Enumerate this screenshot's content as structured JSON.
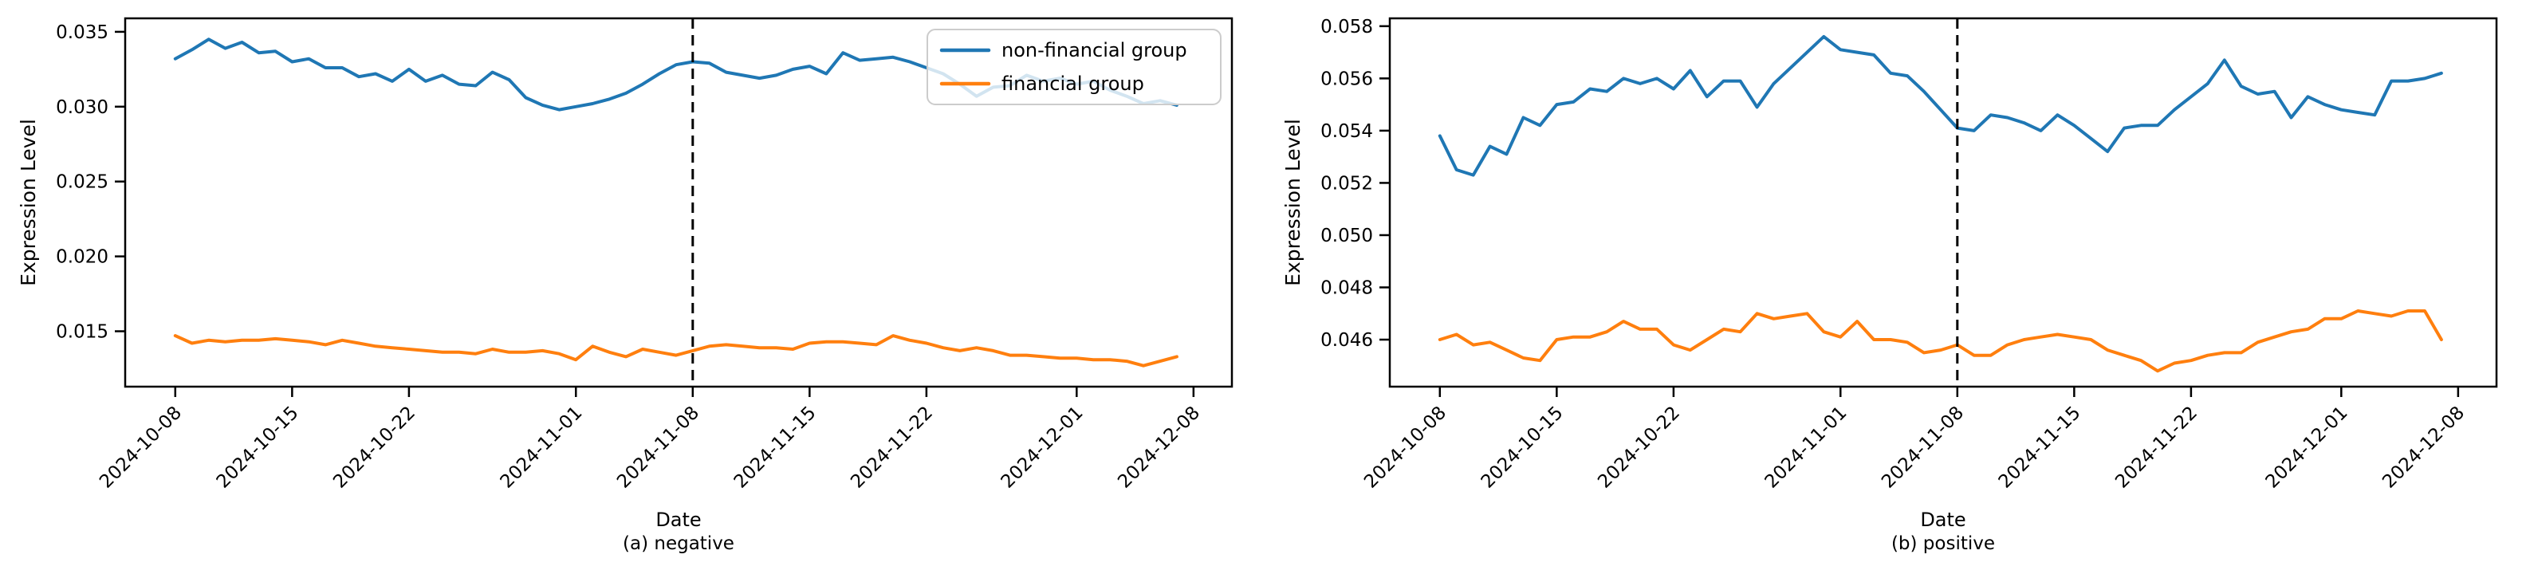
{
  "figure": {
    "background": "#ffffff",
    "ylabel": "Expression Level",
    "xlabel": "Date",
    "legend": {
      "position": "upper right",
      "frame_color": "#cccccc",
      "frame_fill": "#ffffff",
      "frame_opacity": 0.8,
      "entries": [
        {
          "label": "non-financial group",
          "color": "#1f77b4"
        },
        {
          "label": "financial group",
          "color": "#ff7f0e"
        }
      ]
    },
    "colors": {
      "non_financial": "#1f77b4",
      "financial": "#ff7f0e",
      "vline": "#000000",
      "spine": "#000000"
    }
  },
  "chart_data": [
    {
      "type": "line",
      "panel": "a",
      "title": "(a) negative",
      "xlabel": "Date",
      "ylabel": "Expression Level",
      "x_start_date": "2024-10-08",
      "x_unit": "days",
      "grid": false,
      "legend_visible": true,
      "xlim_days": [
        -3.0,
        63.3
      ],
      "ylim": [
        0.0113,
        0.0359
      ],
      "yticks": [
        0.015,
        0.02,
        0.025,
        0.03,
        0.035
      ],
      "xticks": [
        {
          "label": "2024-10-08",
          "day": 0
        },
        {
          "label": "2024-10-15",
          "day": 7
        },
        {
          "label": "2024-10-22",
          "day": 14
        },
        {
          "label": "2024-11-01",
          "day": 24
        },
        {
          "label": "2024-11-08",
          "day": 31
        },
        {
          "label": "2024-11-15",
          "day": 38
        },
        {
          "label": "2024-11-22",
          "day": 45
        },
        {
          "label": "2024-12-01",
          "day": 54
        },
        {
          "label": "2024-12-08",
          "day": 61
        }
      ],
      "vline": {
        "day": 31,
        "date": "2024-11-08",
        "style": "dashed",
        "color": "#000000"
      },
      "series": [
        {
          "name": "non-financial group",
          "color": "#1f77b4",
          "values": [
            0.0332,
            0.0338,
            0.0345,
            0.0339,
            0.0343,
            0.0336,
            0.0337,
            0.033,
            0.0332,
            0.0326,
            0.0326,
            0.032,
            0.0322,
            0.0317,
            0.0325,
            0.0317,
            0.0321,
            0.0315,
            0.0314,
            0.0323,
            0.0318,
            0.0306,
            0.0301,
            0.0298,
            0.03,
            0.0302,
            0.0305,
            0.0309,
            0.0315,
            0.0322,
            0.0328,
            0.033,
            0.0329,
            0.0323,
            0.0321,
            0.0319,
            0.0321,
            0.0325,
            0.0327,
            0.0322,
            0.0336,
            0.0331,
            0.0332,
            0.0333,
            0.033,
            0.0326,
            0.0322,
            0.0315,
            0.0307,
            0.0313,
            0.0314,
            0.0321,
            0.0317,
            0.0319,
            0.0315,
            0.0317,
            0.0311,
            0.0307,
            0.0302,
            0.0304,
            0.0301
          ]
        },
        {
          "name": "financial group",
          "color": "#ff7f0e",
          "values": [
            0.0147,
            0.0142,
            0.0144,
            0.0143,
            0.0144,
            0.0144,
            0.0145,
            0.0144,
            0.0143,
            0.0141,
            0.0144,
            0.0142,
            0.014,
            0.0139,
            0.0138,
            0.0137,
            0.0136,
            0.0136,
            0.0135,
            0.0138,
            0.0136,
            0.0136,
            0.0137,
            0.0135,
            0.0131,
            0.014,
            0.0136,
            0.0133,
            0.0138,
            0.0136,
            0.0134,
            0.0137,
            0.014,
            0.0141,
            0.014,
            0.0139,
            0.0139,
            0.0138,
            0.0142,
            0.0143,
            0.0143,
            0.0142,
            0.0141,
            0.0147,
            0.0144,
            0.0142,
            0.0139,
            0.0137,
            0.0139,
            0.0137,
            0.0134,
            0.0134,
            0.0133,
            0.0132,
            0.0132,
            0.0131,
            0.0131,
            0.013,
            0.0127,
            0.013,
            0.0133
          ]
        }
      ]
    },
    {
      "type": "line",
      "panel": "b",
      "title": "(b) positive",
      "xlabel": "Date",
      "ylabel": "Expression Level",
      "x_start_date": "2024-10-08",
      "x_unit": "days",
      "grid": false,
      "legend_visible": false,
      "xlim_days": [
        -3.0,
        63.3
      ],
      "ylim": [
        0.0442,
        0.0583
      ],
      "yticks": [
        0.046,
        0.048,
        0.05,
        0.052,
        0.054,
        0.056,
        0.058
      ],
      "xticks": [
        {
          "label": "2024-10-08",
          "day": 0
        },
        {
          "label": "2024-10-15",
          "day": 7
        },
        {
          "label": "2024-10-22",
          "day": 14
        },
        {
          "label": "2024-11-01",
          "day": 24
        },
        {
          "label": "2024-11-08",
          "day": 31
        },
        {
          "label": "2024-11-15",
          "day": 38
        },
        {
          "label": "2024-11-22",
          "day": 45
        },
        {
          "label": "2024-12-01",
          "day": 54
        },
        {
          "label": "2024-12-08",
          "day": 61
        }
      ],
      "vline": {
        "day": 31,
        "date": "2024-11-08",
        "style": "dashed",
        "color": "#000000"
      },
      "series": [
        {
          "name": "non-financial group",
          "color": "#1f77b4",
          "values": [
            0.0538,
            0.0525,
            0.0523,
            0.0534,
            0.0531,
            0.0545,
            0.0542,
            0.055,
            0.0551,
            0.0556,
            0.0555,
            0.056,
            0.0558,
            0.056,
            0.0556,
            0.0563,
            0.0553,
            0.0559,
            0.0559,
            0.0549,
            0.0558,
            0.0564,
            0.057,
            0.0576,
            0.0571,
            0.057,
            0.0569,
            0.0562,
            0.0561,
            0.0555,
            0.0548,
            0.0541,
            0.054,
            0.0546,
            0.0545,
            0.0543,
            0.054,
            0.0546,
            0.0542,
            0.0537,
            0.0532,
            0.0541,
            0.0542,
            0.0542,
            0.0548,
            0.0553,
            0.0558,
            0.0567,
            0.0557,
            0.0554,
            0.0555,
            0.0545,
            0.0553,
            0.055,
            0.0548,
            0.0547,
            0.0546,
            0.0559,
            0.0559,
            0.056,
            0.0562
          ]
        },
        {
          "name": "financial group",
          "color": "#ff7f0e",
          "values": [
            0.046,
            0.0462,
            0.0458,
            0.0459,
            0.0456,
            0.0453,
            0.0452,
            0.046,
            0.0461,
            0.0461,
            0.0463,
            0.0467,
            0.0464,
            0.0464,
            0.0458,
            0.0456,
            0.046,
            0.0464,
            0.0463,
            0.047,
            0.0468,
            0.0469,
            0.047,
            0.0463,
            0.0461,
            0.0467,
            0.046,
            0.046,
            0.0459,
            0.0455,
            0.0456,
            0.0458,
            0.0454,
            0.0454,
            0.0458,
            0.046,
            0.0461,
            0.0462,
            0.0461,
            0.046,
            0.0456,
            0.0454,
            0.0452,
            0.0448,
            0.0451,
            0.0452,
            0.0454,
            0.0455,
            0.0455,
            0.0459,
            0.0461,
            0.0463,
            0.0464,
            0.0468,
            0.0468,
            0.0471,
            0.047,
            0.0469,
            0.0471,
            0.0471,
            0.046
          ]
        }
      ]
    }
  ]
}
